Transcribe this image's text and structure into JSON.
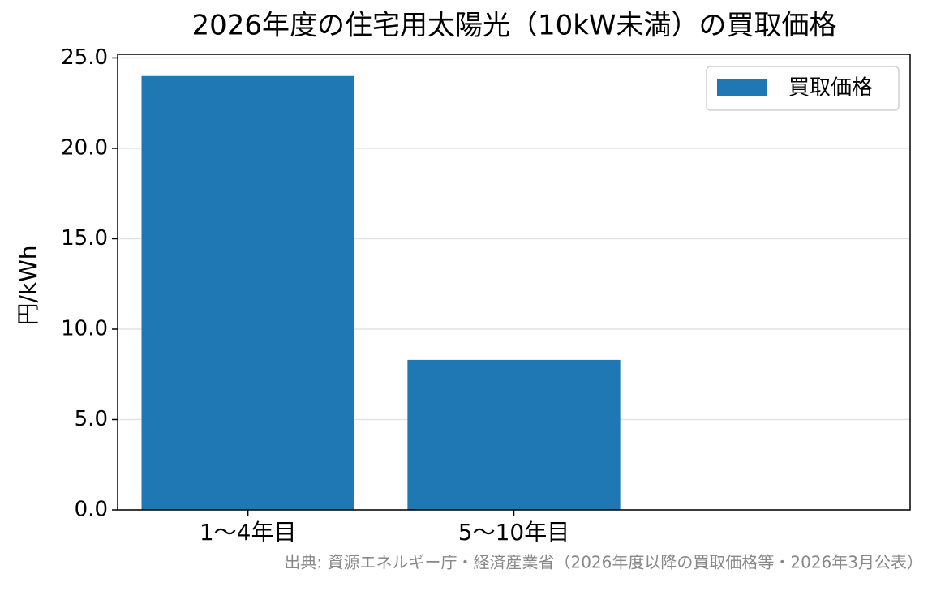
{
  "chart_data": {
    "type": "bar",
    "title": "2026年度の住宅用太陽光（10kW未満）の買取価格",
    "y_label": "円/kWh",
    "source": "出典: 資源エネルギー庁・経済産業省（2026年度以降の買取価格等・2026年3月公表）",
    "categories": [
      "1〜4年目",
      "5〜10年目"
    ],
    "series": [
      {
        "name": "買取価格",
        "color": "#1f77b4",
        "values": [
          24,
          8.3
        ]
      }
    ],
    "ylim": [
      0,
      25.2
    ],
    "yticks": [
      {
        "value": 0,
        "label": "0.0"
      },
      {
        "value": 5,
        "label": "5.0"
      },
      {
        "value": 10,
        "label": "10.0"
      },
      {
        "value": 15,
        "label": "15.0"
      },
      {
        "value": 20,
        "label": "20.0"
      },
      {
        "value": 25,
        "label": "25.0"
      }
    ],
    "grid": true,
    "legend": "upper right"
  }
}
